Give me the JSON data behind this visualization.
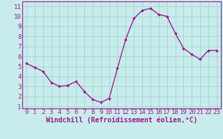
{
  "x": [
    0,
    1,
    2,
    3,
    4,
    5,
    6,
    7,
    8,
    9,
    10,
    11,
    12,
    13,
    14,
    15,
    16,
    17,
    18,
    19,
    20,
    21,
    22,
    23
  ],
  "y": [
    5.3,
    4.9,
    4.5,
    3.4,
    3.0,
    3.1,
    3.5,
    2.5,
    1.7,
    1.4,
    1.8,
    4.8,
    7.7,
    9.8,
    10.6,
    10.8,
    10.2,
    10.0,
    8.3,
    6.8,
    6.2,
    5.7,
    6.6,
    6.6
  ],
  "line_color": "#9b1a8a",
  "marker": "D",
  "marker_size": 2.0,
  "linewidth": 1.0,
  "bg_color": "#c8ecec",
  "plot_bg": "#c8ecec",
  "grid_color": "#aad4d4",
  "xlabel": "Windchill (Refroidissement éolien,°C)",
  "xlabel_color": "#9b1a8a",
  "xlabel_fontsize": 7.0,
  "tick_fontsize": 6.5,
  "xlim": [
    -0.5,
    23.5
  ],
  "ylim": [
    0.8,
    11.5
  ],
  "yticks": [
    1,
    2,
    3,
    4,
    5,
    6,
    7,
    8,
    9,
    10,
    11
  ],
  "xticks": [
    0,
    1,
    2,
    3,
    4,
    5,
    6,
    7,
    8,
    9,
    10,
    11,
    12,
    13,
    14,
    15,
    16,
    17,
    18,
    19,
    20,
    21,
    22,
    23
  ]
}
